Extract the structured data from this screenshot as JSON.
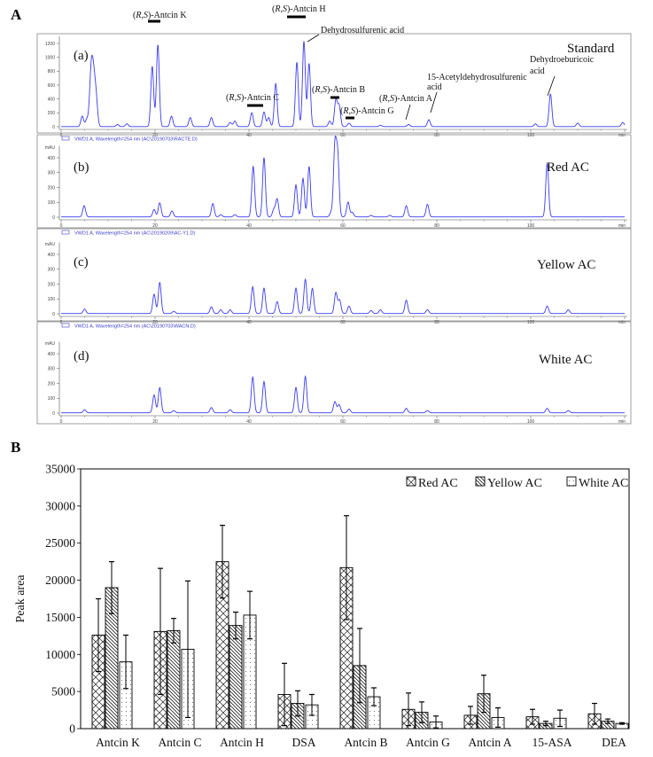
{
  "figure": {
    "panel_a_label": "A",
    "panel_b_label": "B"
  },
  "chart_data": [
    {
      "type": "line",
      "subtype": "chromatogram",
      "x_unit": "min",
      "xlim": [
        0,
        120
      ],
      "x_ticks": [
        "0",
        "20",
        "40",
        "60",
        "80",
        "100"
      ],
      "x_unit_label": "min",
      "color": "#3b3bf2",
      "panels": [
        {
          "letter": "(a)",
          "name": "Standard",
          "header": "",
          "y_unit": "",
          "ylim": [
            0,
            1300
          ],
          "y_ticks": [
            "0",
            "200",
            "400",
            "600",
            "800",
            "1000",
            "1200"
          ],
          "peaks": [
            [
              4.5,
              150
            ],
            [
              5.5,
              110
            ],
            [
              6.3,
              590
            ],
            [
              6.7,
              600
            ],
            [
              7.1,
              400
            ],
            [
              7.5,
              320
            ],
            [
              12,
              30
            ],
            [
              14,
              40
            ],
            [
              19.4,
              870
            ],
            [
              20.6,
              1180
            ],
            [
              23.5,
              150
            ],
            [
              27.5,
              130
            ],
            [
              32,
              130
            ],
            [
              36,
              60
            ],
            [
              37,
              80
            ],
            [
              40.6,
              200
            ],
            [
              43.2,
              210
            ],
            [
              44.2,
              130
            ],
            [
              45.7,
              620
            ],
            [
              50.2,
              930
            ],
            [
              51.7,
              1230
            ],
            [
              52.8,
              910
            ],
            [
              57.2,
              80
            ],
            [
              58.5,
              380
            ],
            [
              59.2,
              300
            ],
            [
              61.3,
              50
            ],
            [
              68,
              20
            ],
            [
              74,
              30
            ],
            [
              78.3,
              100
            ],
            [
              101,
              40
            ],
            [
              104.2,
              470
            ],
            [
              110,
              50
            ],
            [
              119.6,
              60
            ]
          ],
          "annotations": [
            {
              "text": "(R,S)-Antcin K"
            },
            {
              "text": "(R,S)-Antcin H"
            },
            {
              "text": "Dehydrosulfurenic acid"
            },
            {
              "text": "(R,S)-Antcin C"
            },
            {
              "text": "(R,S)-Antcin B"
            },
            {
              "text": "(R,S)-Antcin G"
            },
            {
              "text": "(R,S)-Antcin A"
            },
            {
              "text": "15-Acetyldehydrosulfurenic",
              "text2": "acid"
            },
            {
              "text": "Dehydroeburicoic",
              "text2": "acid"
            }
          ]
        },
        {
          "letter": "(b)",
          "name": "Red AC",
          "header": "VWD1 A, Wavelength=254 nm (AC\\20190703\\RACTE.D)",
          "y_unit": "mAU",
          "ylim": [
            0,
            480
          ],
          "y_ticks": [
            "0",
            "100",
            "200",
            "300",
            "400"
          ],
          "peaks": [
            [
              4.9,
              75
            ],
            [
              19.8,
              50
            ],
            [
              21,
              95
            ],
            [
              23.6,
              40
            ],
            [
              32.3,
              90
            ],
            [
              34,
              15
            ],
            [
              37,
              15
            ],
            [
              40.9,
              340
            ],
            [
              43.2,
              400
            ],
            [
              45.3,
              50
            ],
            [
              46,
              120
            ],
            [
              50,
              215
            ],
            [
              51.5,
              260
            ],
            [
              52.8,
              340
            ],
            [
              57.5,
              30
            ],
            [
              58.3,
              470
            ],
            [
              58.9,
              400
            ],
            [
              61.1,
              100
            ],
            [
              62,
              30
            ],
            [
              66,
              10
            ],
            [
              70,
              10
            ],
            [
              73.5,
              75
            ],
            [
              78,
              85
            ],
            [
              103.5,
              360
            ]
          ]
        },
        {
          "letter": "(c)",
          "name": "Yellow AC",
          "header": "VWD1 A, Wavelength=254 nm (AC\\20190209\\AC-Y1.D)",
          "y_unit": "mAU",
          "ylim": [
            0,
            480
          ],
          "y_ticks": [
            "0",
            "100",
            "200",
            "300",
            "400"
          ],
          "peaks": [
            [
              5,
              30
            ],
            [
              19.8,
              130
            ],
            [
              21,
              210
            ],
            [
              24,
              15
            ],
            [
              32,
              45
            ],
            [
              34,
              25
            ],
            [
              36,
              25
            ],
            [
              40.8,
              180
            ],
            [
              43.2,
              170
            ],
            [
              46,
              80
            ],
            [
              50,
              170
            ],
            [
              52,
              230
            ],
            [
              53.5,
              170
            ],
            [
              58.5,
              140
            ],
            [
              59.3,
              90
            ],
            [
              61.3,
              50
            ],
            [
              66,
              20
            ],
            [
              68,
              25
            ],
            [
              73.5,
              90
            ],
            [
              78,
              25
            ],
            [
              103.5,
              50
            ],
            [
              108,
              25
            ]
          ]
        },
        {
          "letter": "(d)",
          "name": "White AC",
          "header": "VWD1 A, Wavelength=254 nm (AC\\20190703\\WACN.D)",
          "y_unit": "mAU",
          "ylim": [
            0,
            480
          ],
          "y_ticks": [
            "0",
            "100",
            "200",
            "300",
            "400"
          ],
          "peaks": [
            [
              5,
              20
            ],
            [
              19.8,
              120
            ],
            [
              21,
              170
            ],
            [
              24,
              15
            ],
            [
              32,
              35
            ],
            [
              36,
              20
            ],
            [
              40.8,
              240
            ],
            [
              43.2,
              210
            ],
            [
              50,
              170
            ],
            [
              52,
              245
            ],
            [
              58.3,
              75
            ],
            [
              59.2,
              55
            ],
            [
              61.3,
              25
            ],
            [
              73.5,
              30
            ],
            [
              78,
              15
            ],
            [
              103.5,
              30
            ],
            [
              108,
              15
            ]
          ]
        }
      ]
    },
    {
      "type": "bar",
      "ylabel": "Peak area",
      "xlabel": "",
      "ylim": [
        0,
        35000
      ],
      "y_ticks": [
        "0",
        "5000",
        "10000",
        "15000",
        "20000",
        "25000",
        "30000",
        "35000"
      ],
      "legend_position": "top-right",
      "categories": [
        "Antcin K",
        "Antcin C",
        "Antcin H",
        "DSA",
        "Antcin B",
        "Antcin G",
        "Antcin A",
        "15-ASA",
        "DEA"
      ],
      "series": [
        {
          "name": "Red AC",
          "pattern": "crosshatch",
          "values": [
            12600,
            13100,
            22500,
            4600,
            21700,
            2600,
            1800,
            1600,
            2000
          ],
          "errors": [
            4900,
            8500,
            4900,
            4200,
            7000,
            2200,
            1200,
            1000,
            1400
          ]
        },
        {
          "name": "Yellow AC",
          "pattern": "diagonal",
          "values": [
            19000,
            13200,
            13900,
            3400,
            8500,
            2200,
            4700,
            700,
            1000
          ],
          "errors": [
            3500,
            1650,
            1800,
            1700,
            5000,
            1400,
            2500,
            300,
            300
          ]
        },
        {
          "name": "White AC",
          "pattern": "dotted",
          "values": [
            9000,
            10700,
            15300,
            3200,
            4300,
            900,
            1500,
            1400,
            700
          ],
          "errors": [
            3600,
            9200,
            3200,
            1400,
            1200,
            800,
            1300,
            1100,
            100
          ]
        }
      ]
    }
  ]
}
